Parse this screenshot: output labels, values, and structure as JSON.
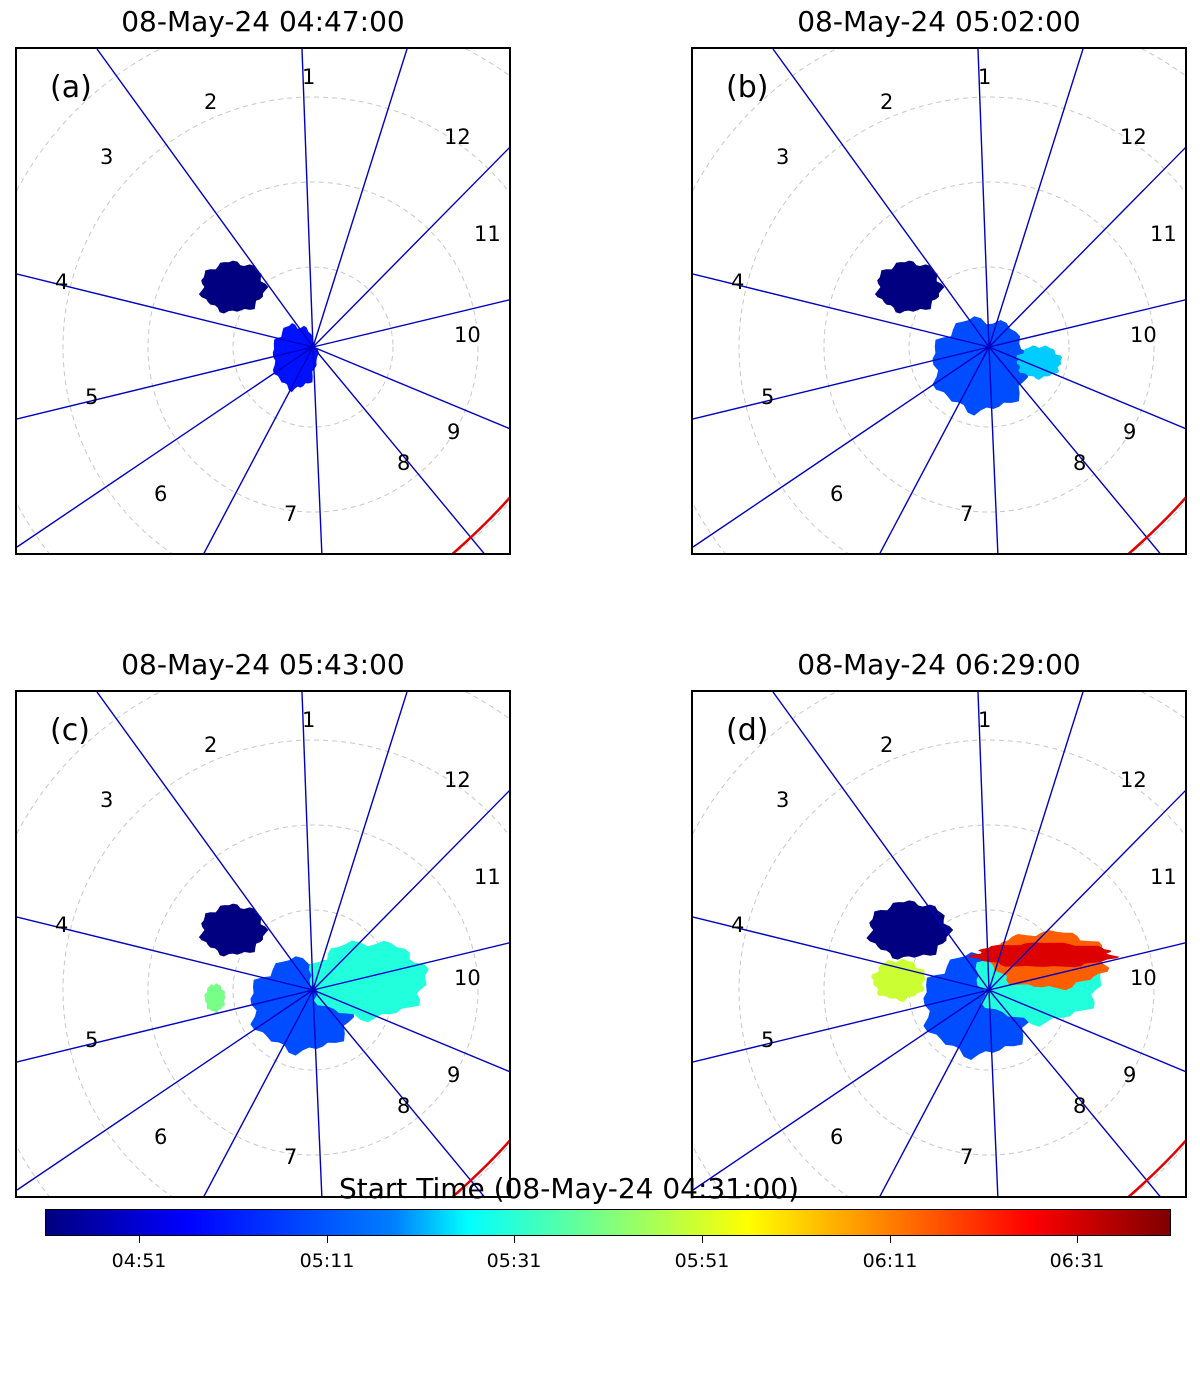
{
  "chart_data": {
    "type": "polar-map",
    "panels": [
      {
        "label": "(a)",
        "title": "08-May-24 04:47:00",
        "mlt_labels": [
          "1",
          "2",
          "3",
          "4",
          "5",
          "6",
          "7",
          "8",
          "9",
          "10",
          "11",
          "12"
        ],
        "patches": [
          {
            "time": "04:33"
          },
          {
            "time": "04:58"
          }
        ]
      },
      {
        "label": "(b)",
        "title": "08-May-24 05:02:00",
        "mlt_labels": [
          "1",
          "2",
          "3",
          "4",
          "5",
          "6",
          "7",
          "8",
          "9",
          "10",
          "11",
          "12"
        ],
        "patches": [
          {
            "time": "04:33"
          },
          {
            "time": "05:05"
          },
          {
            "time": "05:20"
          }
        ]
      },
      {
        "label": "(c)",
        "title": "08-May-24 05:43:00",
        "mlt_labels": [
          "1",
          "2",
          "3",
          "4",
          "5",
          "6",
          "7",
          "8",
          "9",
          "10",
          "11",
          "12"
        ],
        "patches": [
          {
            "time": "04:33"
          },
          {
            "time": "05:05"
          },
          {
            "time": "05:30"
          },
          {
            "time": "05:40"
          }
        ]
      },
      {
        "label": "(d)",
        "title": "08-May-24 06:29:00",
        "mlt_labels": [
          "1",
          "2",
          "3",
          "4",
          "5",
          "6",
          "7",
          "8",
          "9",
          "10",
          "11",
          "12"
        ],
        "patches": [
          {
            "time": "04:33"
          },
          {
            "time": "05:05"
          },
          {
            "time": "05:30"
          },
          {
            "time": "05:50"
          },
          {
            "time": "06:15"
          },
          {
            "time": "06:30"
          }
        ]
      }
    ],
    "colorbar": {
      "title": "Start Time (08-May-24 04:31:00)",
      "colormap": "jet",
      "min": "04:41",
      "max": "06:41",
      "ticks": [
        "04:51",
        "05:11",
        "05:31",
        "05:51",
        "06:11",
        "06:31"
      ]
    }
  }
}
